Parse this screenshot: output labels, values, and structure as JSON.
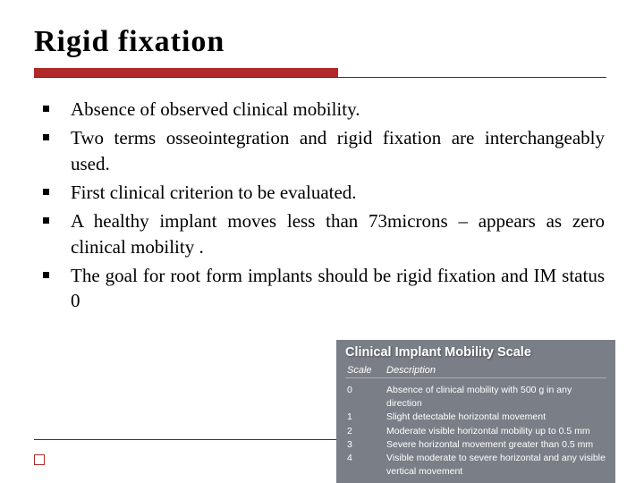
{
  "title": "Rigid fixation",
  "accent_color": "#b02a2a",
  "text_color": "#000000",
  "bullets": [
    "Absence of observed clinical mobility.",
    "Two terms osseointegration and rigid fixation are interchangeably used.",
    "First clinical criterion to be evaluated.",
    "A healthy implant moves less than 73microns – appears as zero clinical mobility .",
    "The goal for root form implants should be  rigid fixation and IM status 0"
  ],
  "scale": {
    "title": "Clinical Implant Mobility Scale",
    "headers": [
      "Scale",
      "Description"
    ],
    "bg_color": "#7a7f87",
    "rows": [
      {
        "scale": "0",
        "desc": "Absence of clinical mobility with 500 g in any direction"
      },
      {
        "scale": "1",
        "desc": "Slight detectable horizontal movement"
      },
      {
        "scale": "2",
        "desc": "Moderate visible horizontal mobility up to 0.5 mm"
      },
      {
        "scale": "3",
        "desc": "Severe horizontal movement greater than 0.5 mm"
      },
      {
        "scale": "4",
        "desc": "Visible moderate to severe horizontal and any visible vertical movement"
      }
    ]
  }
}
